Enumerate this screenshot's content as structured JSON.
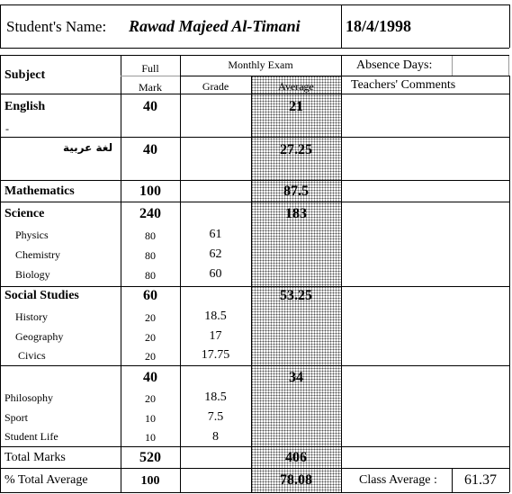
{
  "header": {
    "name_label": "Student's Name:",
    "student_name": "Rawad Majeed Al-Timani",
    "date": "18/4/1998"
  },
  "columns": {
    "subject": "Subject",
    "full": "Full",
    "mark": "Mark",
    "monthly_exam": "Monthly Exam",
    "grade": "Grade",
    "average": "Average",
    "absence_days": "Absence Days:",
    "teachers_comments": "Teachers' Comments"
  },
  "rows": {
    "english": {
      "subject": "English",
      "dash": "-",
      "full": "40",
      "average": "21"
    },
    "arabic": {
      "subject": "لغة عربية",
      "full": "40",
      "average": "27.25"
    },
    "mathematics": {
      "subject": "Mathematics",
      "full": "100",
      "average": "87.5"
    },
    "science": {
      "subject": "Science",
      "full": "240",
      "average": "183",
      "sub": [
        {
          "subject": "Physics",
          "full": "80",
          "grade": "61"
        },
        {
          "subject": "Chemistry",
          "full": "80",
          "grade": "62"
        },
        {
          "subject": "Biology",
          "full": "80",
          "grade": "60"
        }
      ]
    },
    "social": {
      "subject": "Social Studies",
      "full": "60",
      "average": "53.25",
      "sub": [
        {
          "subject": "History",
          "full": "20",
          "grade": "18.5"
        },
        {
          "subject": "Geography",
          "full": "20",
          "grade": "17"
        },
        {
          "subject": "Civics",
          "full": "20",
          "grade": "17.75"
        }
      ]
    },
    "other": {
      "full": "40",
      "average": "34",
      "sub": [
        {
          "subject": "Philosophy",
          "full": "20",
          "grade": "18.5"
        },
        {
          "subject": "Sport",
          "full": "10",
          "grade": "7.5"
        },
        {
          "subject": "Student Life",
          "full": "10",
          "grade": "8"
        }
      ]
    }
  },
  "totals": {
    "total_label": "Total Marks",
    "total_full": "520",
    "total_average": "406",
    "pct_label": "% Total Average",
    "pct_full": "100",
    "pct_average": "78.08",
    "class_average_label": "Class Average :",
    "class_average": "61.37"
  }
}
